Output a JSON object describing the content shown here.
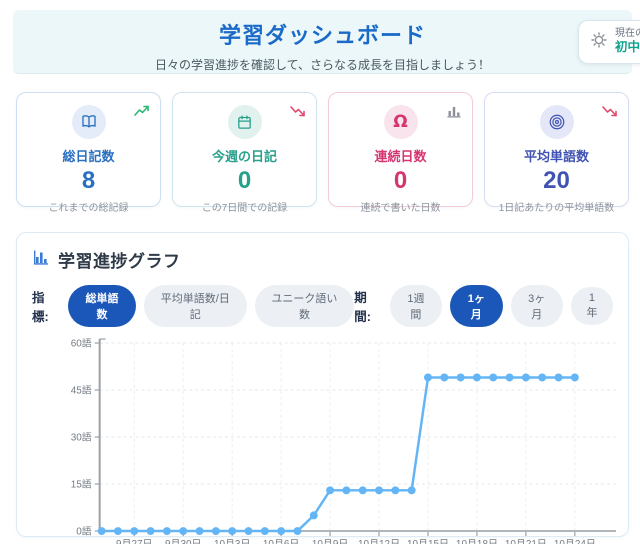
{
  "header": {
    "title": "学習ダッシュボード",
    "subtitle": "日々の学習進捗を確認して、さらなる成長を目指しましょう！",
    "level": {
      "label": "現在の",
      "value": "初中"
    }
  },
  "stats": [
    {
      "title": "総日記数",
      "value": "8",
      "subtitle": "これまでの総記録",
      "accent": "#2a6fc0",
      "icon_bg": "#e3ecf8",
      "border": "#cddff2",
      "icon": "book-icon",
      "trend": "trending-up"
    },
    {
      "title": "今週の日記",
      "value": "0",
      "subtitle": "この7日間での記録",
      "accent": "#27a08c",
      "icon_bg": "#e0f1ee",
      "border": "#cfe4ef",
      "icon": "calendar-icon",
      "trend": "trending-down"
    },
    {
      "title": "連続日数",
      "value": "0",
      "subtitle": "連続で書いた日数",
      "accent": "#d63571",
      "icon_bg": "#f9e3ec",
      "border": "#f2ccd9",
      "icon": "flame-icon",
      "trend": "bar-chart"
    },
    {
      "title": "平均単語数",
      "value": "20",
      "subtitle": "1日記あたりの平均単語数",
      "accent": "#4053b4",
      "icon_bg": "#e4e7f7",
      "border": "#d6dcf2",
      "icon": "target-icon",
      "trend": "trending-down"
    }
  ],
  "chart_section": {
    "title": "学習進捗グラフ",
    "metric_label": "指標:",
    "metrics": [
      {
        "label": "総単語数",
        "selected": true
      },
      {
        "label": "平均単語数/日記",
        "selected": false
      },
      {
        "label": "ユニーク語い数",
        "selected": false
      }
    ],
    "period_label": "期間:",
    "periods": [
      {
        "label": "1週間",
        "selected": false
      },
      {
        "label": "1ヶ月",
        "selected": true
      },
      {
        "label": "3ヶ月",
        "selected": false
      },
      {
        "label": "1年",
        "selected": false
      }
    ]
  },
  "chart_data": {
    "type": "line",
    "title": "学習進捗グラフ",
    "series": [
      {
        "name": "総単語数",
        "values": [
          0,
          0,
          0,
          0,
          0,
          0,
          0,
          0,
          0,
          0,
          0,
          0,
          0,
          5,
          13,
          13,
          13,
          13,
          13,
          13,
          49,
          49,
          49,
          49,
          49,
          49,
          49,
          49,
          49,
          49
        ]
      }
    ],
    "x_tick_labels": [
      "9月27日",
      "9月30日",
      "10月3日",
      "10月6日",
      "10月9日",
      "10月12日",
      "10月15日",
      "10月18日",
      "10月21日",
      "10月24日"
    ],
    "x_tick_indices": [
      2,
      5,
      8,
      11,
      14,
      17,
      20,
      23,
      26,
      29
    ],
    "y_tick_labels": [
      "0語",
      "15語",
      "30語",
      "45語",
      "60語"
    ],
    "y_tick_values": [
      0,
      15,
      30,
      45,
      60
    ],
    "ylim": [
      0,
      60
    ],
    "grid": true,
    "legend": "none",
    "line_color": "#64b5f6"
  },
  "colors": {
    "hero_bg": "#ecf7fa",
    "hero_title": "#1a6ac8",
    "pill_selected": "#1b57b8",
    "trend_up": "#2bb673",
    "trend_down": "#e0486d",
    "axis": "#9aa0a6"
  }
}
